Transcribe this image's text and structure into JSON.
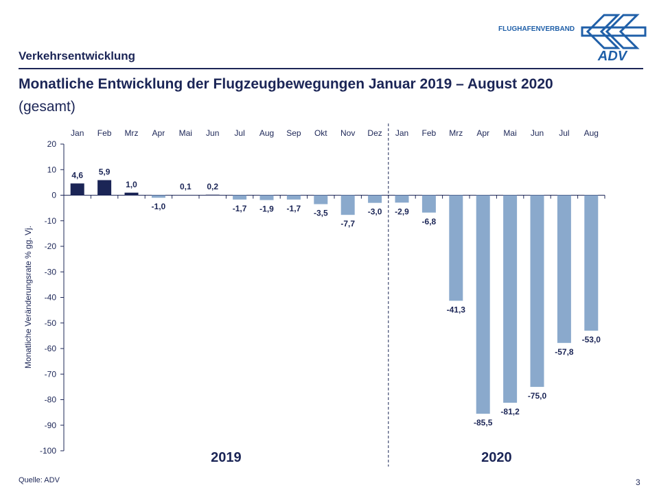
{
  "header": {
    "section": "Verkehrsentwicklung",
    "title": "Monatliche Entwicklung der Flugzeugbewegungen Januar 2019 – August 2020",
    "subtitle": "(gesamt)"
  },
  "logo": {
    "text": "FLUGHAFENVERBAND",
    "mark": "ADV"
  },
  "footer": {
    "source": "Quelle: ADV",
    "page": "3"
  },
  "colors": {
    "positive": "#1b2556",
    "negative": "#8aa9cc",
    "text": "#1b2556"
  },
  "chart_data": {
    "type": "bar",
    "categories": [
      "Jan",
      "Feb",
      "Mrz",
      "Apr",
      "Mai",
      "Jun",
      "Jul",
      "Aug",
      "Sep",
      "Okt",
      "Nov",
      "Dez",
      "Jan",
      "Feb",
      "Mrz",
      "Apr",
      "Mai",
      "Jun",
      "Jul",
      "Aug"
    ],
    "values": [
      4.6,
      5.9,
      1.0,
      -1.0,
      0.1,
      0.2,
      -1.7,
      -1.9,
      -1.7,
      -3.5,
      -7.7,
      -3.0,
      -2.9,
      -6.8,
      -41.3,
      -85.5,
      -81.2,
      -75.0,
      -57.8,
      -53.0
    ],
    "labels": [
      "4,6",
      "5,9",
      "1,0",
      "-1,0",
      "0,1",
      "0,2",
      "-1,7",
      "-1,9",
      "-1,7",
      "-3,5",
      "-7,7",
      "-3,0",
      "-2,9",
      "-6,8",
      "-41,3",
      "-85,5",
      "-81,2",
      "-75,0",
      "-57,8",
      "-53,0"
    ],
    "groups": [
      "2019",
      "2020"
    ],
    "ylabel": "Monatliche Veränderungsrate % gg. Vj.",
    "ylim": [
      -100,
      20
    ],
    "yticks": [
      20,
      10,
      0,
      -10,
      -20,
      -30,
      -40,
      -50,
      -60,
      -70,
      -80,
      -90,
      -100
    ],
    "grid": false
  }
}
